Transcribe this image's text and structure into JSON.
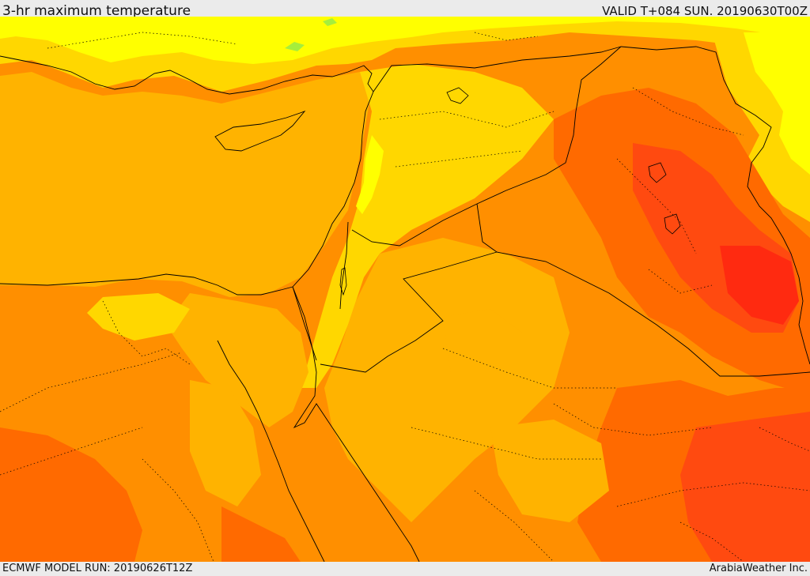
{
  "header": {
    "title": "3-hr maximum temperature",
    "valid_time": "VALID T+084 SUN. 20190630T00Z"
  },
  "footer": {
    "model_run": "ECMWF MODEL RUN: 20190626T12Z",
    "provider": "ArabiaWeather Inc."
  },
  "map": {
    "variable": "3-hr maximum temperature",
    "palette": {
      "green": "#a6ee3c",
      "yellow": "#ffff00",
      "gold": "#ffd700",
      "light_orange": "#ffb300",
      "orange": "#ff8f00",
      "dark_orange": "#ff6a00",
      "red_orange": "#ff4a10",
      "red": "#ff2a10"
    },
    "border_color": "#000000"
  }
}
